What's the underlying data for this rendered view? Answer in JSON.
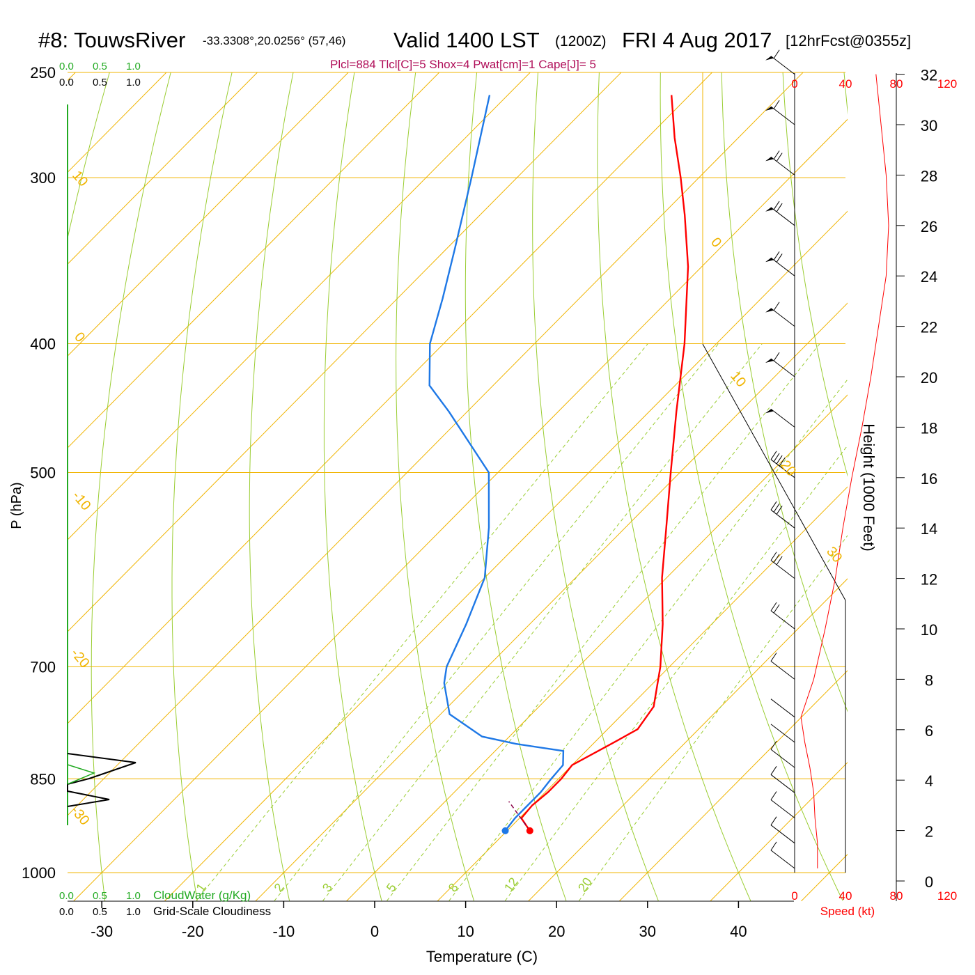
{
  "header": {
    "station": "#8: TouwsRiver",
    "coords": "-33.3308°,20.0256° (57,46)",
    "valid": "Valid 1400 LST",
    "zulu": "(1200Z)",
    "date": "FRI 4 Aug 2017",
    "forecast": "[12hrFcst@0355z]",
    "indices": "Plcl=884 Tlcl[C]=5 Shox=4 Pwat[cm]=1 Cape[J]= 5"
  },
  "colors": {
    "isotherm": "#f0b400",
    "dry_adiabat": "#9acd32",
    "mixing_ratio": "#9acd32",
    "temperature": "#ff0000",
    "dewpoint": "#1e78e6",
    "cloud_water": "#22aa22",
    "cloudiness": "#000000",
    "speed": "#ff0000"
  },
  "chart_data": {
    "type": "line",
    "subtype": "skew-t log-p sounding",
    "xlabel": "Temperature (C)",
    "ylabel": "P (hPa)",
    "x_ticks": [
      -30,
      -20,
      -10,
      0,
      10,
      20,
      30,
      40
    ],
    "p_ticks": [
      250,
      300,
      400,
      500,
      700,
      850,
      1000
    ],
    "height_label": "Height (1000 Feet)",
    "height_ticks": [
      0,
      2,
      4,
      6,
      8,
      10,
      12,
      14,
      16,
      18,
      20,
      22,
      24,
      26,
      28,
      30,
      32
    ],
    "isotherm_labels": [
      "10",
      "0",
      "-10",
      "-20",
      "-30",
      "0",
      "10",
      "20",
      "30"
    ],
    "mixing_ratio_labels": [
      "1",
      "2",
      "3",
      "5",
      "8",
      "12",
      "20"
    ],
    "series": [
      {
        "name": "Temperature",
        "points": [
          [
            930,
            12.5
          ],
          [
            910,
            10.2
          ],
          [
            890,
            10.0
          ],
          [
            870,
            10.3
          ],
          [
            850,
            10.3
          ],
          [
            830,
            10.0
          ],
          [
            800,
            12.0
          ],
          [
            780,
            13.3
          ],
          [
            750,
            12.6
          ],
          [
            700,
            9.0
          ],
          [
            650,
            4.6
          ],
          [
            600,
            -0.5
          ],
          [
            550,
            -5.5
          ],
          [
            500,
            -11.0
          ],
          [
            450,
            -17.0
          ],
          [
            400,
            -23.5
          ],
          [
            350,
            -31.5
          ],
          [
            320,
            -37.5
          ],
          [
            300,
            -42.0
          ],
          [
            280,
            -47.0
          ],
          [
            260,
            -52.0
          ]
        ]
      },
      {
        "name": "Dewpoint",
        "points": [
          [
            930,
            9.8
          ],
          [
            910,
            9.5
          ],
          [
            890,
            9.5
          ],
          [
            870,
            9.5
          ],
          [
            850,
            9.2
          ],
          [
            830,
            9.0
          ],
          [
            810,
            7.5
          ],
          [
            800,
            1.5
          ],
          [
            790,
            -3.0
          ],
          [
            760,
            -9.0
          ],
          [
            720,
            -13.0
          ],
          [
            700,
            -14.5
          ],
          [
            650,
            -17.0
          ],
          [
            600,
            -20.0
          ],
          [
            550,
            -25.0
          ],
          [
            500,
            -31.0
          ],
          [
            450,
            -42.0
          ],
          [
            430,
            -47.0
          ],
          [
            400,
            -51.5
          ],
          [
            370,
            -55.0
          ],
          [
            340,
            -59.0
          ],
          [
            300,
            -65.0
          ],
          [
            260,
            -72.0
          ]
        ]
      }
    ],
    "surface_temperature": 12.5,
    "surface_dewpoint": 9.8,
    "surface_pressure": 930,
    "wind_profile_speed_kt": [
      [
        0.5,
        18
      ],
      [
        1.5,
        18
      ],
      [
        2.5,
        16
      ],
      [
        3.5,
        15
      ],
      [
        4.5,
        12
      ],
      [
        5.5,
        8
      ],
      [
        6.5,
        5
      ],
      [
        8,
        15
      ],
      [
        10,
        24
      ],
      [
        12,
        32
      ],
      [
        14,
        38
      ],
      [
        16,
        45
      ],
      [
        18,
        53
      ],
      [
        20,
        60
      ],
      [
        22,
        66
      ],
      [
        24,
        72
      ],
      [
        26,
        74
      ],
      [
        28,
        72
      ],
      [
        30,
        68
      ],
      [
        32,
        64
      ]
    ],
    "cloud_panel": {
      "cloud_water_label": "CloudWater (g/Kg)",
      "cloudiness_label": "Grid-Scale Cloudiness",
      "ticks": [
        "0.0",
        "0.5",
        "1.0"
      ]
    },
    "speed_axis": {
      "label": "Speed (kt)",
      "ticks": [
        "0",
        "40",
        "80",
        "120"
      ]
    }
  }
}
